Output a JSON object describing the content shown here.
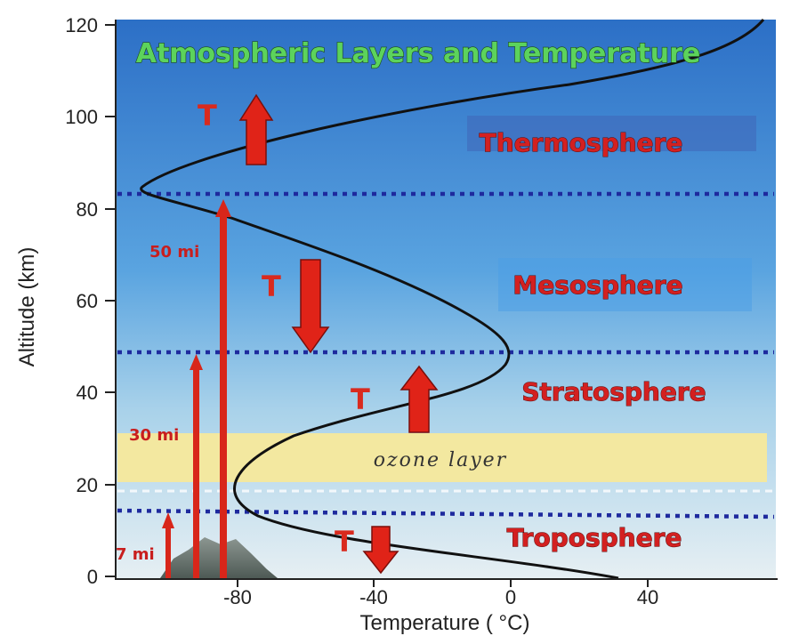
{
  "title": "Atmospheric Layers and Temperature",
  "y_axis": {
    "label": "Altitude (km)",
    "ticks": [
      "120",
      "100",
      "80",
      "60",
      "40",
      "20",
      "0"
    ]
  },
  "x_axis": {
    "label": "Temperature ( °C)",
    "ticks": [
      "-80",
      "-40",
      "0",
      "40"
    ]
  },
  "layers": [
    {
      "id": "thermosphere",
      "label": "Thermosphere"
    },
    {
      "id": "mesosphere",
      "label": "Mesosphere"
    },
    {
      "id": "stratosphere",
      "label": "Stratosphere"
    },
    {
      "id": "troposphere",
      "label": "Troposphere"
    }
  ],
  "ozone_layer": "ozone layer",
  "temperature_markers": {
    "symbol": "T"
  },
  "height_labels": {
    "mi_50": "50 mi",
    "mi_30": "30 mi",
    "mi_7": "7 mi"
  },
  "colors": {
    "sky_top": "#2f74c9",
    "sky_bottom": "#dbe9f2",
    "ozone": "#f3e8a0",
    "boundary": "#1e2a9e",
    "arrow": "#e02318",
    "curve": "#111111",
    "title": "#5cd35c",
    "layer_label": "#d32020"
  }
}
